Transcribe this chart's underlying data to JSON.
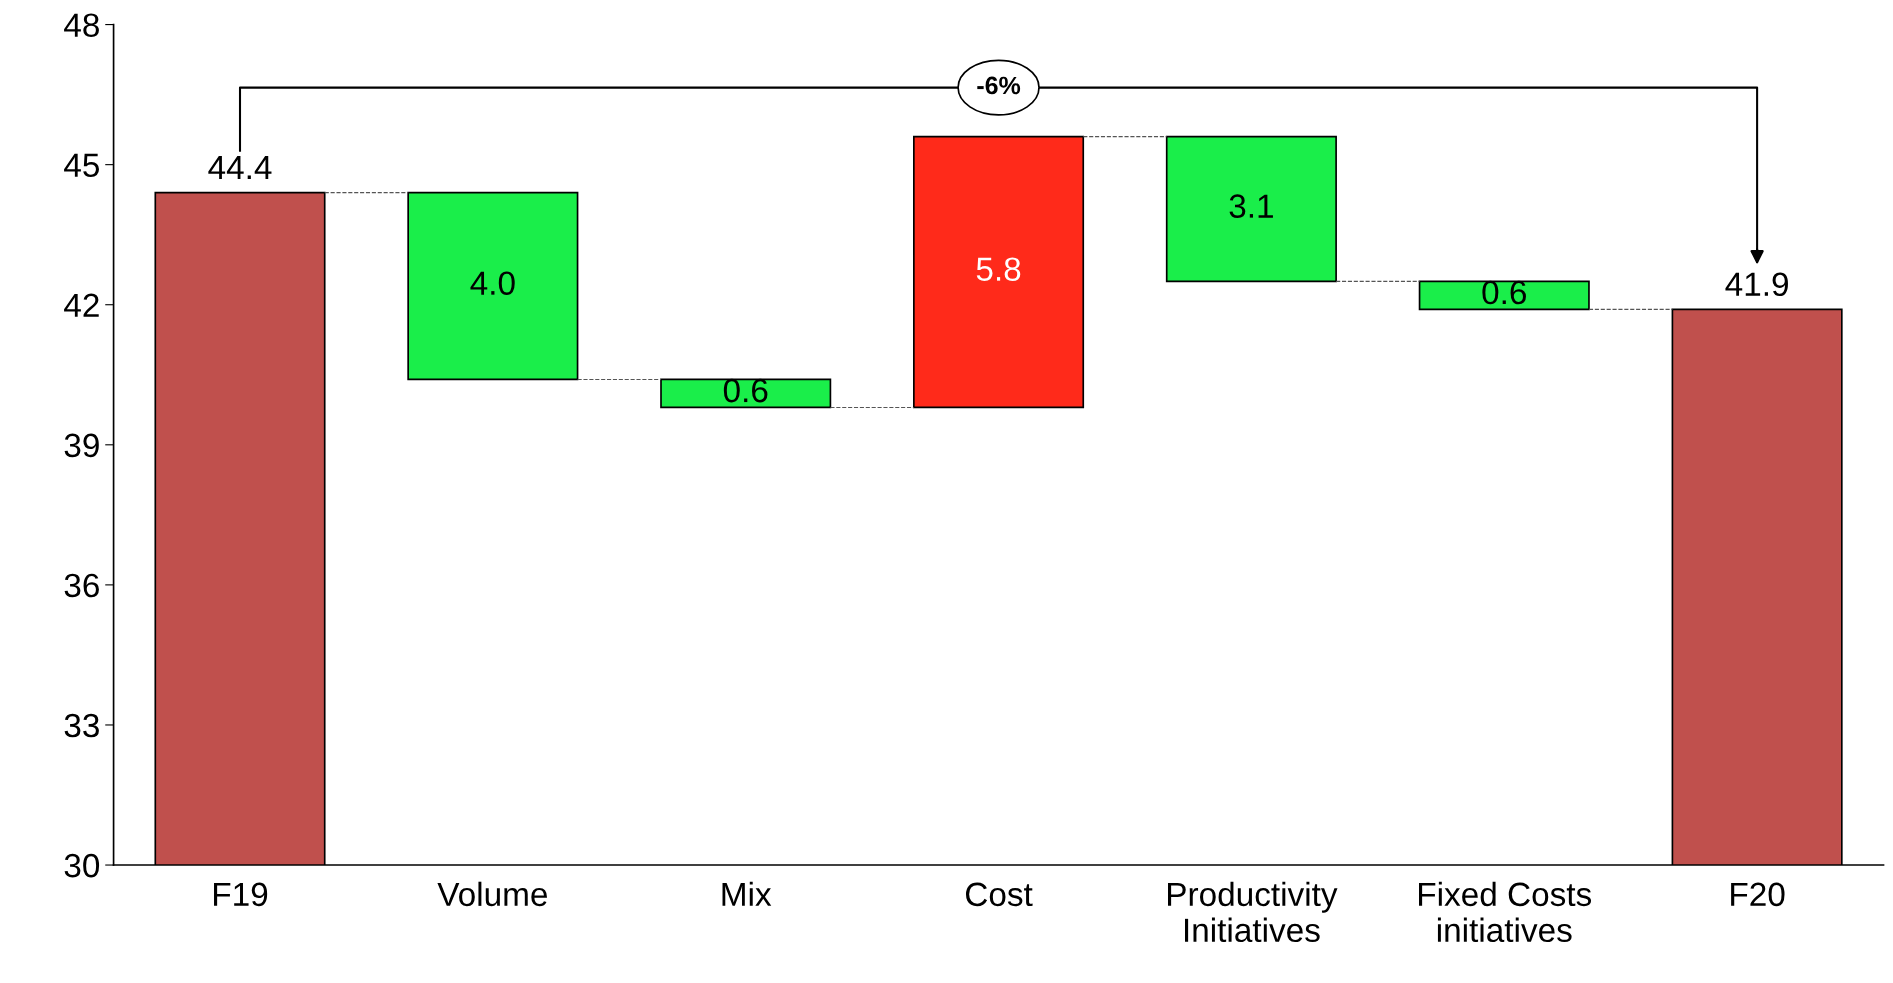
{
  "chart_data": {
    "type": "bar",
    "categories": [
      "F19",
      "Volume",
      "Mix",
      "Cost",
      "Productivity\nInitiatives",
      "Fixed Costs\ninitiatives",
      "F20"
    ],
    "values": [
      44.4,
      4.0,
      0.6,
      5.8,
      3.1,
      0.6,
      41.9
    ],
    "base": [
      null,
      40.4,
      39.8,
      39.8,
      42.5,
      41.9,
      null
    ],
    "colors": [
      "#c0504d",
      "#1aee4a",
      "#1aee4a",
      "#ff2a1a",
      "#1aee4a",
      "#1aee4a",
      "#c0504d"
    ],
    "value_labels": [
      "44.4",
      "4.0",
      "0.6",
      "5.8",
      "3.1",
      "0.6",
      "41.9"
    ],
    "ylim": [
      30,
      48
    ],
    "yticks": [
      30,
      33,
      36,
      39,
      42,
      45,
      48
    ],
    "grid": false,
    "legend": false,
    "annotations": [
      "-6%"
    ]
  }
}
